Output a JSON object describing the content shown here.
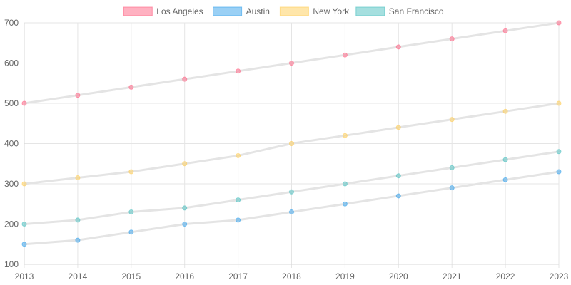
{
  "chart_data": {
    "type": "line",
    "title": "",
    "xlabel": "",
    "ylabel": "",
    "x": [
      "2013",
      "2014",
      "2015",
      "2016",
      "2017",
      "2018",
      "2019",
      "2020",
      "2021",
      "2022",
      "2023"
    ],
    "ylim": [
      100,
      700
    ],
    "yticks": [
      "100",
      "200",
      "300",
      "400",
      "500",
      "600",
      "700"
    ],
    "grid": true,
    "legend_position": "top-center",
    "line_color": "#e4e4e4",
    "series": [
      {
        "name": "Los Angeles",
        "color": "#ff6384",
        "values": [
          500,
          520,
          540,
          560,
          580,
          600,
          620,
          640,
          660,
          680,
          700
        ]
      },
      {
        "name": "Austin",
        "color": "#36a2eb",
        "values": [
          150,
          160,
          180,
          200,
          210,
          230,
          250,
          270,
          290,
          310,
          330
        ]
      },
      {
        "name": "New York",
        "color": "#ffcd56",
        "values": [
          300,
          315,
          330,
          350,
          370,
          400,
          420,
          440,
          460,
          480,
          500
        ]
      },
      {
        "name": "San Francisco",
        "color": "#4bc0c0",
        "values": [
          200,
          210,
          230,
          240,
          260,
          280,
          300,
          320,
          340,
          360,
          380
        ]
      }
    ]
  }
}
